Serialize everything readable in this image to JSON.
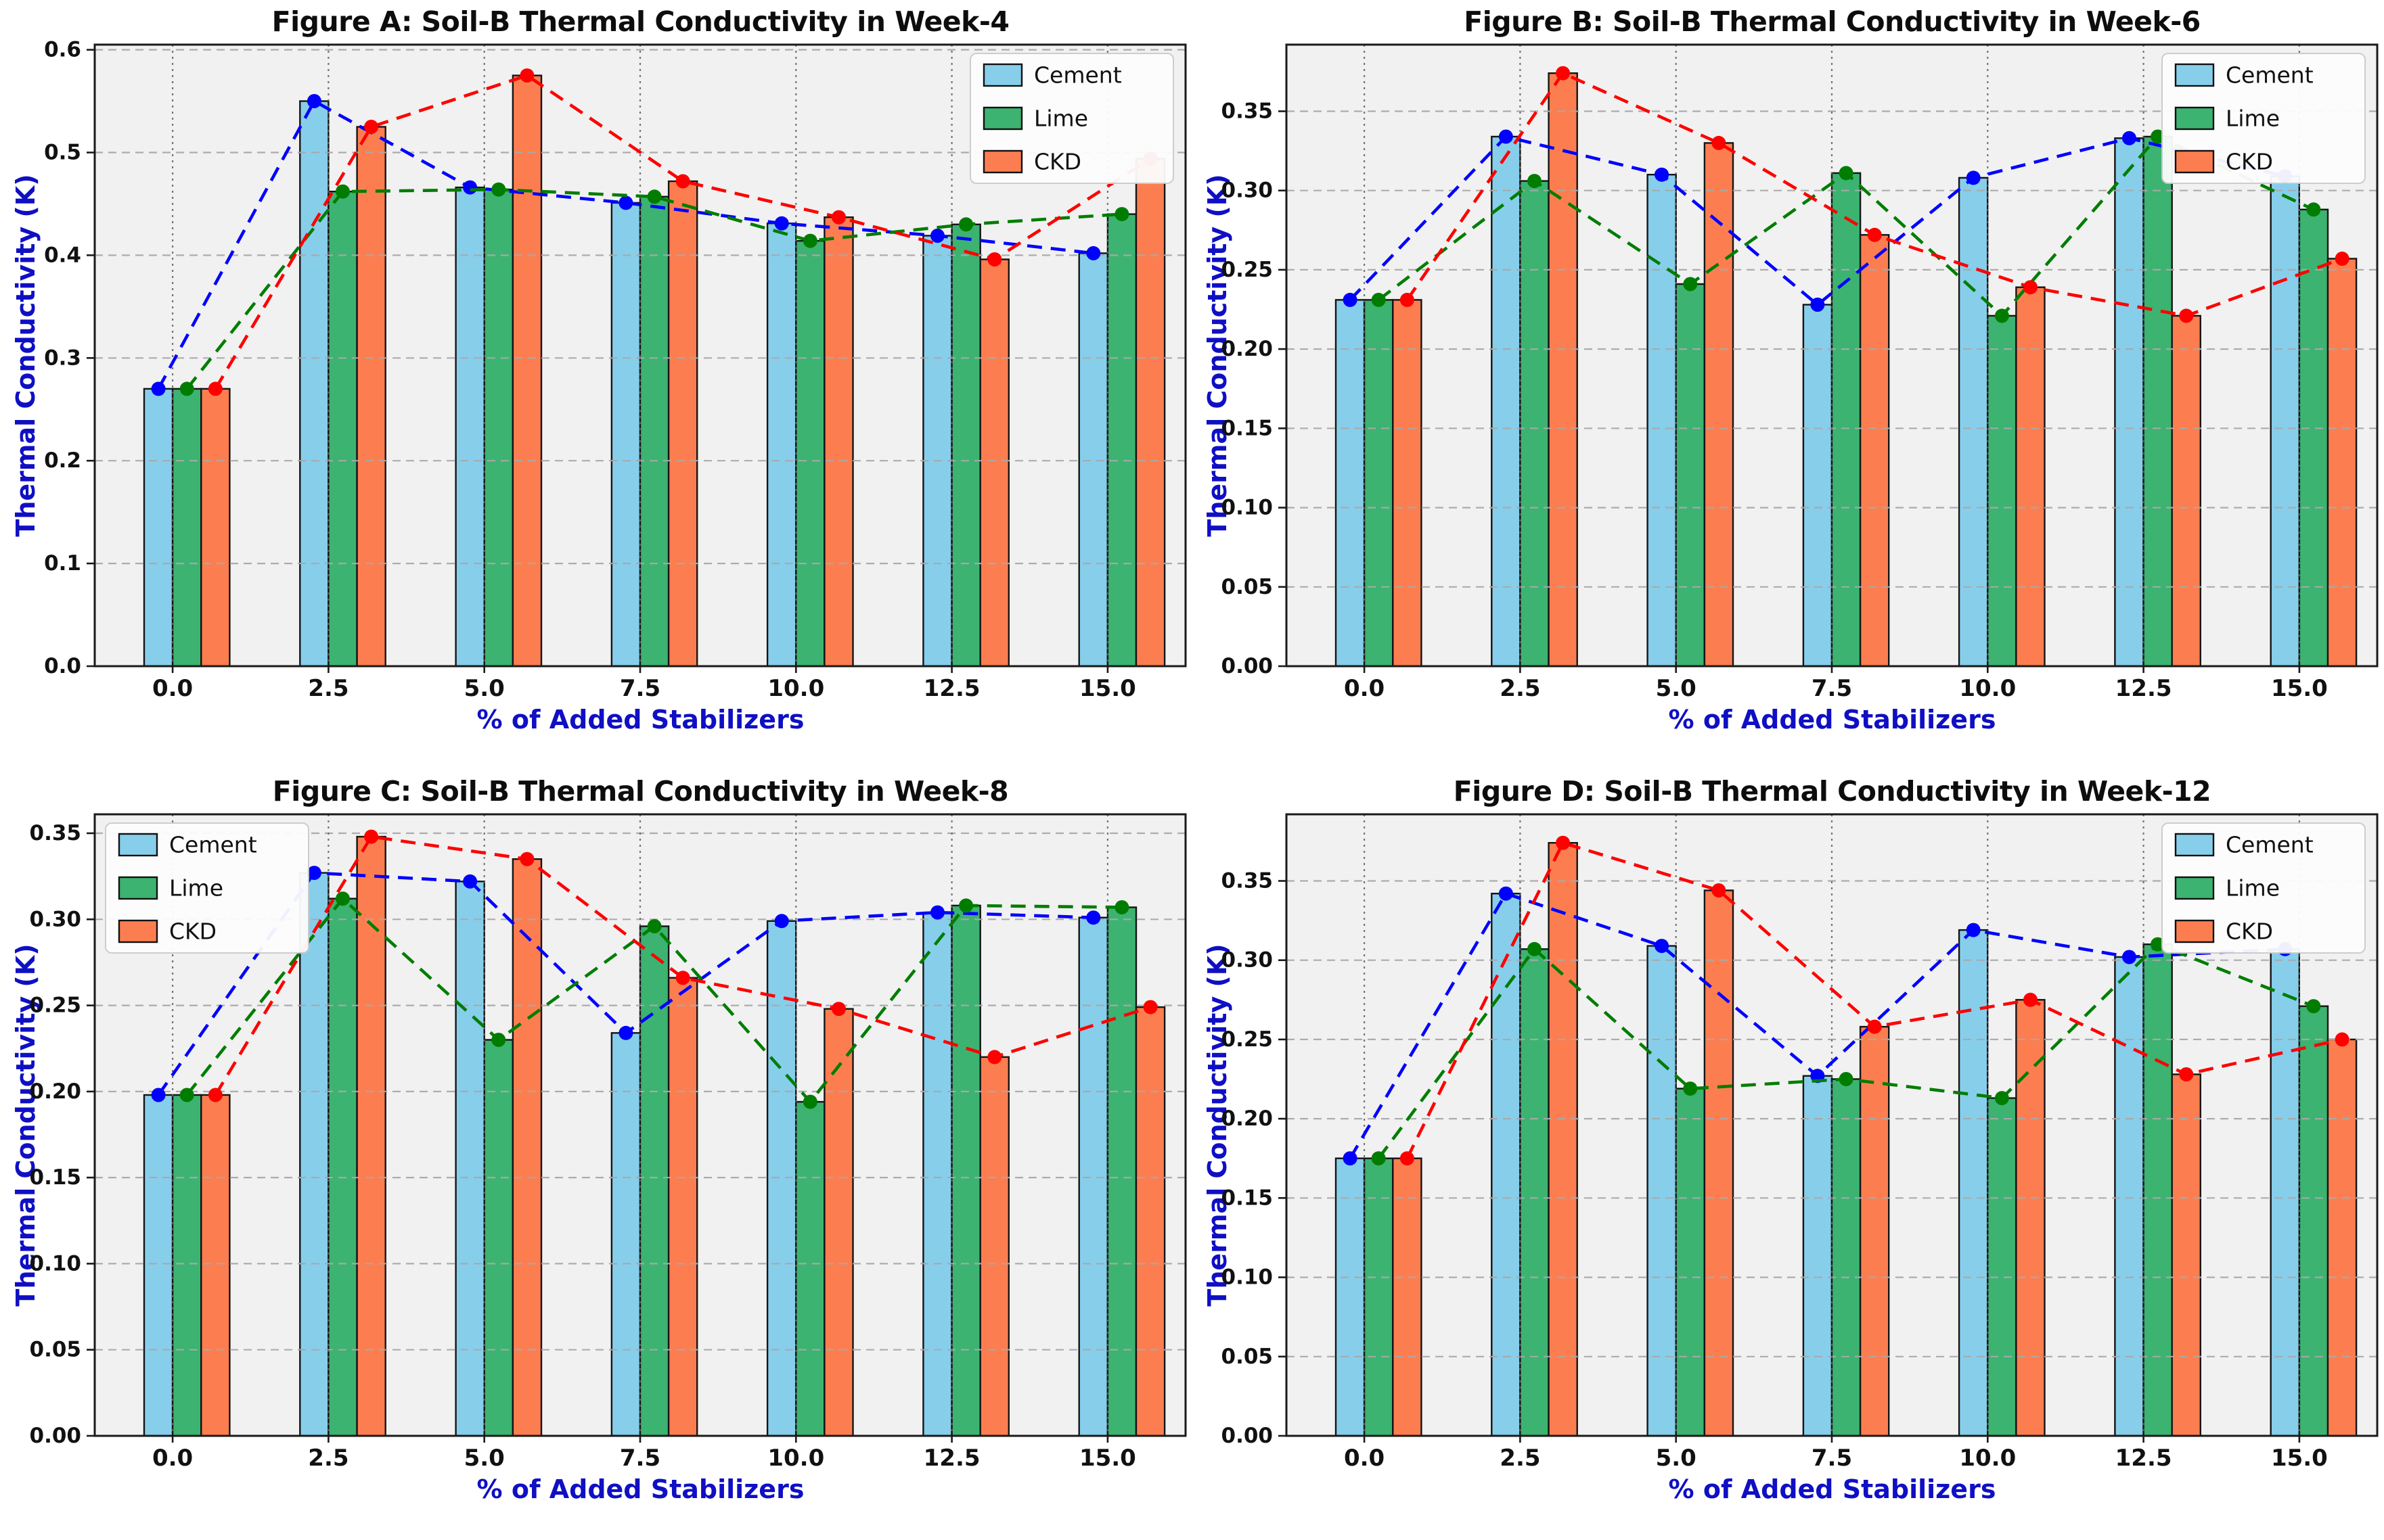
{
  "chart_data": [
    {
      "type": "bar",
      "id": "A",
      "title": "Figure A: Soil-B Thermal Conductivity in Week-4",
      "xlabel": "% of Added Stabilizers",
      "ylabel": "Thermal Conductivity (K)",
      "categories": [
        "0.0",
        "2.5",
        "5.0",
        "7.5",
        "10.0",
        "12.5",
        "15.0"
      ],
      "ytick_values": [
        0,
        0.1,
        0.2,
        0.3,
        0.4,
        0.5,
        0.6
      ],
      "ytick_labels": [
        "0.0",
        "0.1",
        "0.2",
        "0.3",
        "0.4",
        "0.5",
        "0.6"
      ],
      "ylim": [
        0,
        0.605
      ],
      "grid": true,
      "legend_position": "top-right",
      "series": [
        {
          "name": "Cement",
          "values": [
            0.27,
            0.55,
            0.466,
            0.451,
            0.431,
            0.419,
            0.402
          ]
        },
        {
          "name": "Lime",
          "values": [
            0.27,
            0.462,
            0.464,
            0.457,
            0.414,
            0.43,
            0.44
          ]
        },
        {
          "name": "CKD",
          "values": [
            0.27,
            0.525,
            0.575,
            0.472,
            0.437,
            0.396,
            0.494
          ]
        }
      ]
    },
    {
      "type": "bar",
      "id": "B",
      "title": "Figure B: Soil-B Thermal Conductivity in Week-6",
      "xlabel": "% of Added Stabilizers",
      "ylabel": "Thermal Conductivity (K)",
      "categories": [
        "0.0",
        "2.5",
        "5.0",
        "7.5",
        "10.0",
        "12.5",
        "15.0"
      ],
      "ytick_values": [
        0,
        0.05,
        0.1,
        0.15,
        0.2,
        0.25,
        0.3,
        0.35
      ],
      "ytick_labels": [
        "0.00",
        "0.05",
        "0.10",
        "0.15",
        "0.20",
        "0.25",
        "0.30",
        "0.35"
      ],
      "ylim": [
        0,
        0.392
      ],
      "grid": true,
      "legend_position": "top-right",
      "series": [
        {
          "name": "Cement",
          "values": [
            0.231,
            0.334,
            0.31,
            0.228,
            0.308,
            0.333,
            0.309
          ]
        },
        {
          "name": "Lime",
          "values": [
            0.231,
            0.306,
            0.241,
            0.311,
            0.221,
            0.334,
            0.288
          ]
        },
        {
          "name": "CKD",
          "values": [
            0.231,
            0.374,
            0.33,
            0.272,
            0.239,
            0.221,
            0.257
          ]
        }
      ]
    },
    {
      "type": "bar",
      "id": "C",
      "title": "Figure C: Soil-B Thermal Conductivity in Week-8",
      "xlabel": "% of Added Stabilizers",
      "ylabel": "Thermal Conductivity (K)",
      "categories": [
        "0.0",
        "2.5",
        "5.0",
        "7.5",
        "10.0",
        "12.5",
        "15.0"
      ],
      "ytick_values": [
        0,
        0.05,
        0.1,
        0.15,
        0.2,
        0.25,
        0.3,
        0.35
      ],
      "ytick_labels": [
        "0.00",
        "0.05",
        "0.10",
        "0.15",
        "0.20",
        "0.25",
        "0.30",
        "0.35"
      ],
      "ylim": [
        0,
        0.361
      ],
      "grid": true,
      "legend_position": "top-left",
      "series": [
        {
          "name": "Cement",
          "values": [
            0.198,
            0.327,
            0.322,
            0.234,
            0.299,
            0.304,
            0.301
          ]
        },
        {
          "name": "Lime",
          "values": [
            0.198,
            0.312,
            0.23,
            0.296,
            0.194,
            0.308,
            0.307
          ]
        },
        {
          "name": "CKD",
          "values": [
            0.198,
            0.348,
            0.335,
            0.266,
            0.248,
            0.22,
            0.249
          ]
        }
      ]
    },
    {
      "type": "bar",
      "id": "D",
      "title": "Figure D: Soil-B Thermal Conductivity in Week-12",
      "xlabel": "% of Added Stabilizers",
      "ylabel": "Thermal Conductivity (K)",
      "categories": [
        "0.0",
        "2.5",
        "5.0",
        "7.5",
        "10.0",
        "12.5",
        "15.0"
      ],
      "ytick_values": [
        0,
        0.05,
        0.1,
        0.15,
        0.2,
        0.25,
        0.3,
        0.35
      ],
      "ytick_labels": [
        "0.00",
        "0.05",
        "0.10",
        "0.15",
        "0.20",
        "0.25",
        "0.30",
        "0.35"
      ],
      "ylim": [
        0,
        0.392
      ],
      "grid": true,
      "legend_position": "top-right",
      "series": [
        {
          "name": "Cement",
          "values": [
            0.175,
            0.342,
            0.309,
            0.227,
            0.319,
            0.302,
            0.307
          ]
        },
        {
          "name": "Lime",
          "values": [
            0.175,
            0.307,
            0.219,
            0.225,
            0.213,
            0.31,
            0.271
          ]
        },
        {
          "name": "CKD",
          "values": [
            0.175,
            0.374,
            0.344,
            0.258,
            0.275,
            0.228,
            0.25
          ]
        }
      ]
    }
  ],
  "style": {
    "bar_colors": {
      "Cement": "#87CEEB",
      "Lime": "#3CB371",
      "CKD": "#FC7E50"
    },
    "line_colors": {
      "Cement": "#0000FF",
      "Lime": "#007D00",
      "CKD": "#FF0000"
    },
    "bar_edge_color": "#151515",
    "plot_bg": "#f1f1f1",
    "axis_label_color": "#0f0fc4",
    "title_color": "#0d0d0d",
    "tick_color": "#111111",
    "hgrid_color": "#a9a9a9",
    "vgrid_color": "#5f5f5f",
    "spine_color": "#1a1a1a",
    "legend_border": "#cccccc",
    "legend_bg": "#fdfdfd"
  }
}
